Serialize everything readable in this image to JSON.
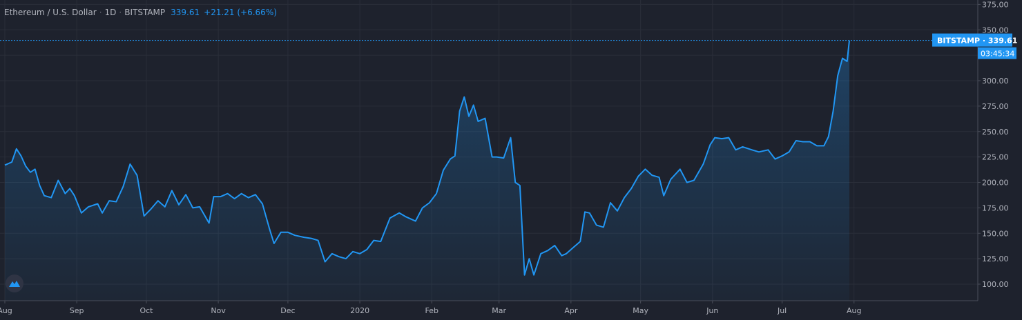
{
  "header": {
    "symbol": "Ethereum / U.S. Dollar",
    "interval": "1D",
    "exchange": "BITSTAMP",
    "last": "339.61",
    "change": "+21.21 (+6.66%)"
  },
  "price_label": {
    "exchange": "BITSTAMP",
    "price": "339.61",
    "countdown": "03:45:34"
  },
  "colors": {
    "background": "#1e222d",
    "grid": "#2a2e39",
    "line": "#2196f3",
    "text": "#b2b5be",
    "label_bg": "#2196f3"
  },
  "icons": {
    "logo": "tradingview-logo-icon"
  },
  "chart_data": {
    "type": "area",
    "y_axis": {
      "side": "right",
      "ticks": [
        100,
        125,
        150,
        175,
        200,
        225,
        250,
        275,
        300,
        325,
        350,
        375
      ],
      "ylim": [
        92,
        375
      ]
    },
    "x_axis": {
      "ticks": [
        {
          "label": "Aug",
          "date": "2019-08-01"
        },
        {
          "label": "Sep",
          "date": "2019-09-01"
        },
        {
          "label": "Oct",
          "date": "2019-10-01"
        },
        {
          "label": "Nov",
          "date": "2019-11-01"
        },
        {
          "label": "Dec",
          "date": "2019-12-01"
        },
        {
          "label": "2020",
          "date": "2020-01-01"
        },
        {
          "label": "Feb",
          "date": "2020-02-01"
        },
        {
          "label": "Mar",
          "date": "2020-03-01"
        },
        {
          "label": "Apr",
          "date": "2020-04-01"
        },
        {
          "label": "May",
          "date": "2020-05-01"
        },
        {
          "label": "Jun",
          "date": "2020-06-01"
        },
        {
          "label": "Jul",
          "date": "2020-07-01"
        },
        {
          "label": "Aug",
          "date": "2020-08-01"
        }
      ],
      "xlim": [
        "2019-08-01",
        "2020-08-01"
      ]
    },
    "grid": true,
    "series": [
      {
        "points": [
          [
            "2019-08-01",
            217
          ],
          [
            "2019-08-04",
            220
          ],
          [
            "2019-08-06",
            233
          ],
          [
            "2019-08-08",
            226
          ],
          [
            "2019-08-10",
            216
          ],
          [
            "2019-08-12",
            210
          ],
          [
            "2019-08-14",
            213
          ],
          [
            "2019-08-16",
            197
          ],
          [
            "2019-08-18",
            187
          ],
          [
            "2019-08-21",
            185
          ],
          [
            "2019-08-24",
            202
          ],
          [
            "2019-08-27",
            189
          ],
          [
            "2019-08-29",
            194
          ],
          [
            "2019-08-31",
            187
          ],
          [
            "2019-09-03",
            170
          ],
          [
            "2019-09-06",
            176
          ],
          [
            "2019-09-10",
            179
          ],
          [
            "2019-09-12",
            170
          ],
          [
            "2019-09-15",
            182
          ],
          [
            "2019-09-18",
            181
          ],
          [
            "2019-09-21",
            196
          ],
          [
            "2019-09-24",
            218
          ],
          [
            "2019-09-27",
            207
          ],
          [
            "2019-09-30",
            167
          ],
          [
            "2019-10-03",
            174
          ],
          [
            "2019-10-06",
            182
          ],
          [
            "2019-10-09",
            176
          ],
          [
            "2019-10-12",
            192
          ],
          [
            "2019-10-15",
            178
          ],
          [
            "2019-10-18",
            188
          ],
          [
            "2019-10-21",
            175
          ],
          [
            "2019-10-24",
            176
          ],
          [
            "2019-10-28",
            160
          ],
          [
            "2019-10-30",
            186
          ],
          [
            "2019-11-02",
            186
          ],
          [
            "2019-11-05",
            189
          ],
          [
            "2019-11-08",
            184
          ],
          [
            "2019-11-11",
            189
          ],
          [
            "2019-11-14",
            185
          ],
          [
            "2019-11-17",
            188
          ],
          [
            "2019-11-20",
            179
          ],
          [
            "2019-11-23",
            155
          ],
          [
            "2019-11-25",
            140
          ],
          [
            "2019-11-28",
            151
          ],
          [
            "2019-12-01",
            151
          ],
          [
            "2019-12-04",
            148
          ],
          [
            "2019-12-08",
            146
          ],
          [
            "2019-12-11",
            145
          ],
          [
            "2019-12-14",
            143
          ],
          [
            "2019-12-17",
            122
          ],
          [
            "2019-12-20",
            130
          ],
          [
            "2019-12-23",
            127
          ],
          [
            "2019-12-26",
            125
          ],
          [
            "2019-12-29",
            132
          ],
          [
            "2020-01-01",
            130
          ],
          [
            "2020-01-04",
            134
          ],
          [
            "2020-01-07",
            143
          ],
          [
            "2020-01-10",
            142
          ],
          [
            "2020-01-14",
            165
          ],
          [
            "2020-01-18",
            170
          ],
          [
            "2020-01-21",
            166
          ],
          [
            "2020-01-25",
            162
          ],
          [
            "2020-01-28",
            175
          ],
          [
            "2020-01-31",
            180
          ],
          [
            "2020-02-03",
            189
          ],
          [
            "2020-02-06",
            212
          ],
          [
            "2020-02-09",
            223
          ],
          [
            "2020-02-11",
            226
          ],
          [
            "2020-02-13",
            270
          ],
          [
            "2020-02-15",
            284
          ],
          [
            "2020-02-17",
            265
          ],
          [
            "2020-02-19",
            276
          ],
          [
            "2020-02-21",
            260
          ],
          [
            "2020-02-24",
            263
          ],
          [
            "2020-02-27",
            225
          ],
          [
            "2020-02-29",
            225
          ],
          [
            "2020-03-03",
            224
          ],
          [
            "2020-03-06",
            244
          ],
          [
            "2020-03-08",
            200
          ],
          [
            "2020-03-10",
            197
          ],
          [
            "2020-03-12",
            109
          ],
          [
            "2020-03-14",
            125
          ],
          [
            "2020-03-16",
            109
          ],
          [
            "2020-03-19",
            130
          ],
          [
            "2020-03-22",
            133
          ],
          [
            "2020-03-25",
            138
          ],
          [
            "2020-03-28",
            128
          ],
          [
            "2020-03-30",
            130
          ],
          [
            "2020-04-02",
            136
          ],
          [
            "2020-04-05",
            142
          ],
          [
            "2020-04-07",
            171
          ],
          [
            "2020-04-09",
            170
          ],
          [
            "2020-04-12",
            158
          ],
          [
            "2020-04-15",
            156
          ],
          [
            "2020-04-18",
            180
          ],
          [
            "2020-04-21",
            172
          ],
          [
            "2020-04-24",
            185
          ],
          [
            "2020-04-27",
            194
          ],
          [
            "2020-04-30",
            206
          ],
          [
            "2020-05-03",
            213
          ],
          [
            "2020-05-06",
            207
          ],
          [
            "2020-05-09",
            205
          ],
          [
            "2020-05-11",
            187
          ],
          [
            "2020-05-14",
            203
          ],
          [
            "2020-05-18",
            213
          ],
          [
            "2020-05-21",
            200
          ],
          [
            "2020-05-24",
            202
          ],
          [
            "2020-05-28",
            218
          ],
          [
            "2020-05-31",
            237
          ],
          [
            "2020-06-02",
            244
          ],
          [
            "2020-06-05",
            243
          ],
          [
            "2020-06-08",
            244
          ],
          [
            "2020-06-11",
            232
          ],
          [
            "2020-06-14",
            235
          ],
          [
            "2020-06-18",
            232
          ],
          [
            "2020-06-21",
            230
          ],
          [
            "2020-06-25",
            232
          ],
          [
            "2020-06-28",
            223
          ],
          [
            "2020-07-01",
            226
          ],
          [
            "2020-07-04",
            230
          ],
          [
            "2020-07-07",
            241
          ],
          [
            "2020-07-10",
            240
          ],
          [
            "2020-07-13",
            240
          ],
          [
            "2020-07-16",
            236
          ],
          [
            "2020-07-19",
            236
          ],
          [
            "2020-07-21",
            245
          ],
          [
            "2020-07-23",
            270
          ],
          [
            "2020-07-25",
            305
          ],
          [
            "2020-07-27",
            322
          ],
          [
            "2020-07-29",
            319
          ],
          [
            "2020-07-30",
            339.61
          ]
        ]
      }
    ]
  }
}
